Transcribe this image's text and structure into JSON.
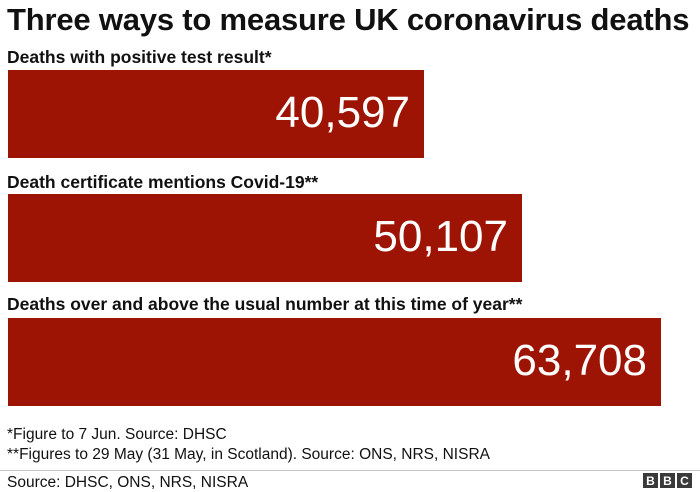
{
  "chart_data": {
    "type": "bar",
    "orientation": "horizontal",
    "title": "Three ways to measure UK coronavirus deaths",
    "categories": [
      "Deaths with positive test result*",
      "Death certificate mentions Covid-19**",
      "Deaths over and above the usual number at this time of year**"
    ],
    "values": [
      40597,
      50107,
      63708
    ],
    "value_labels": [
      "40,597",
      "50,107",
      "63,708"
    ],
    "xlim": [
      0,
      66000
    ],
    "bar_color": "#9e1404",
    "grid": false
  },
  "footnotes": [
    "*Figure to 7 Jun. Source: DHSC",
    "**Figures to 29 May (31 May, in Scotland). Source: ONS, NRS, NISRA"
  ],
  "source": "Source: DHSC, ONS, NRS, NISRA",
  "logo": [
    "B",
    "B",
    "C"
  ]
}
